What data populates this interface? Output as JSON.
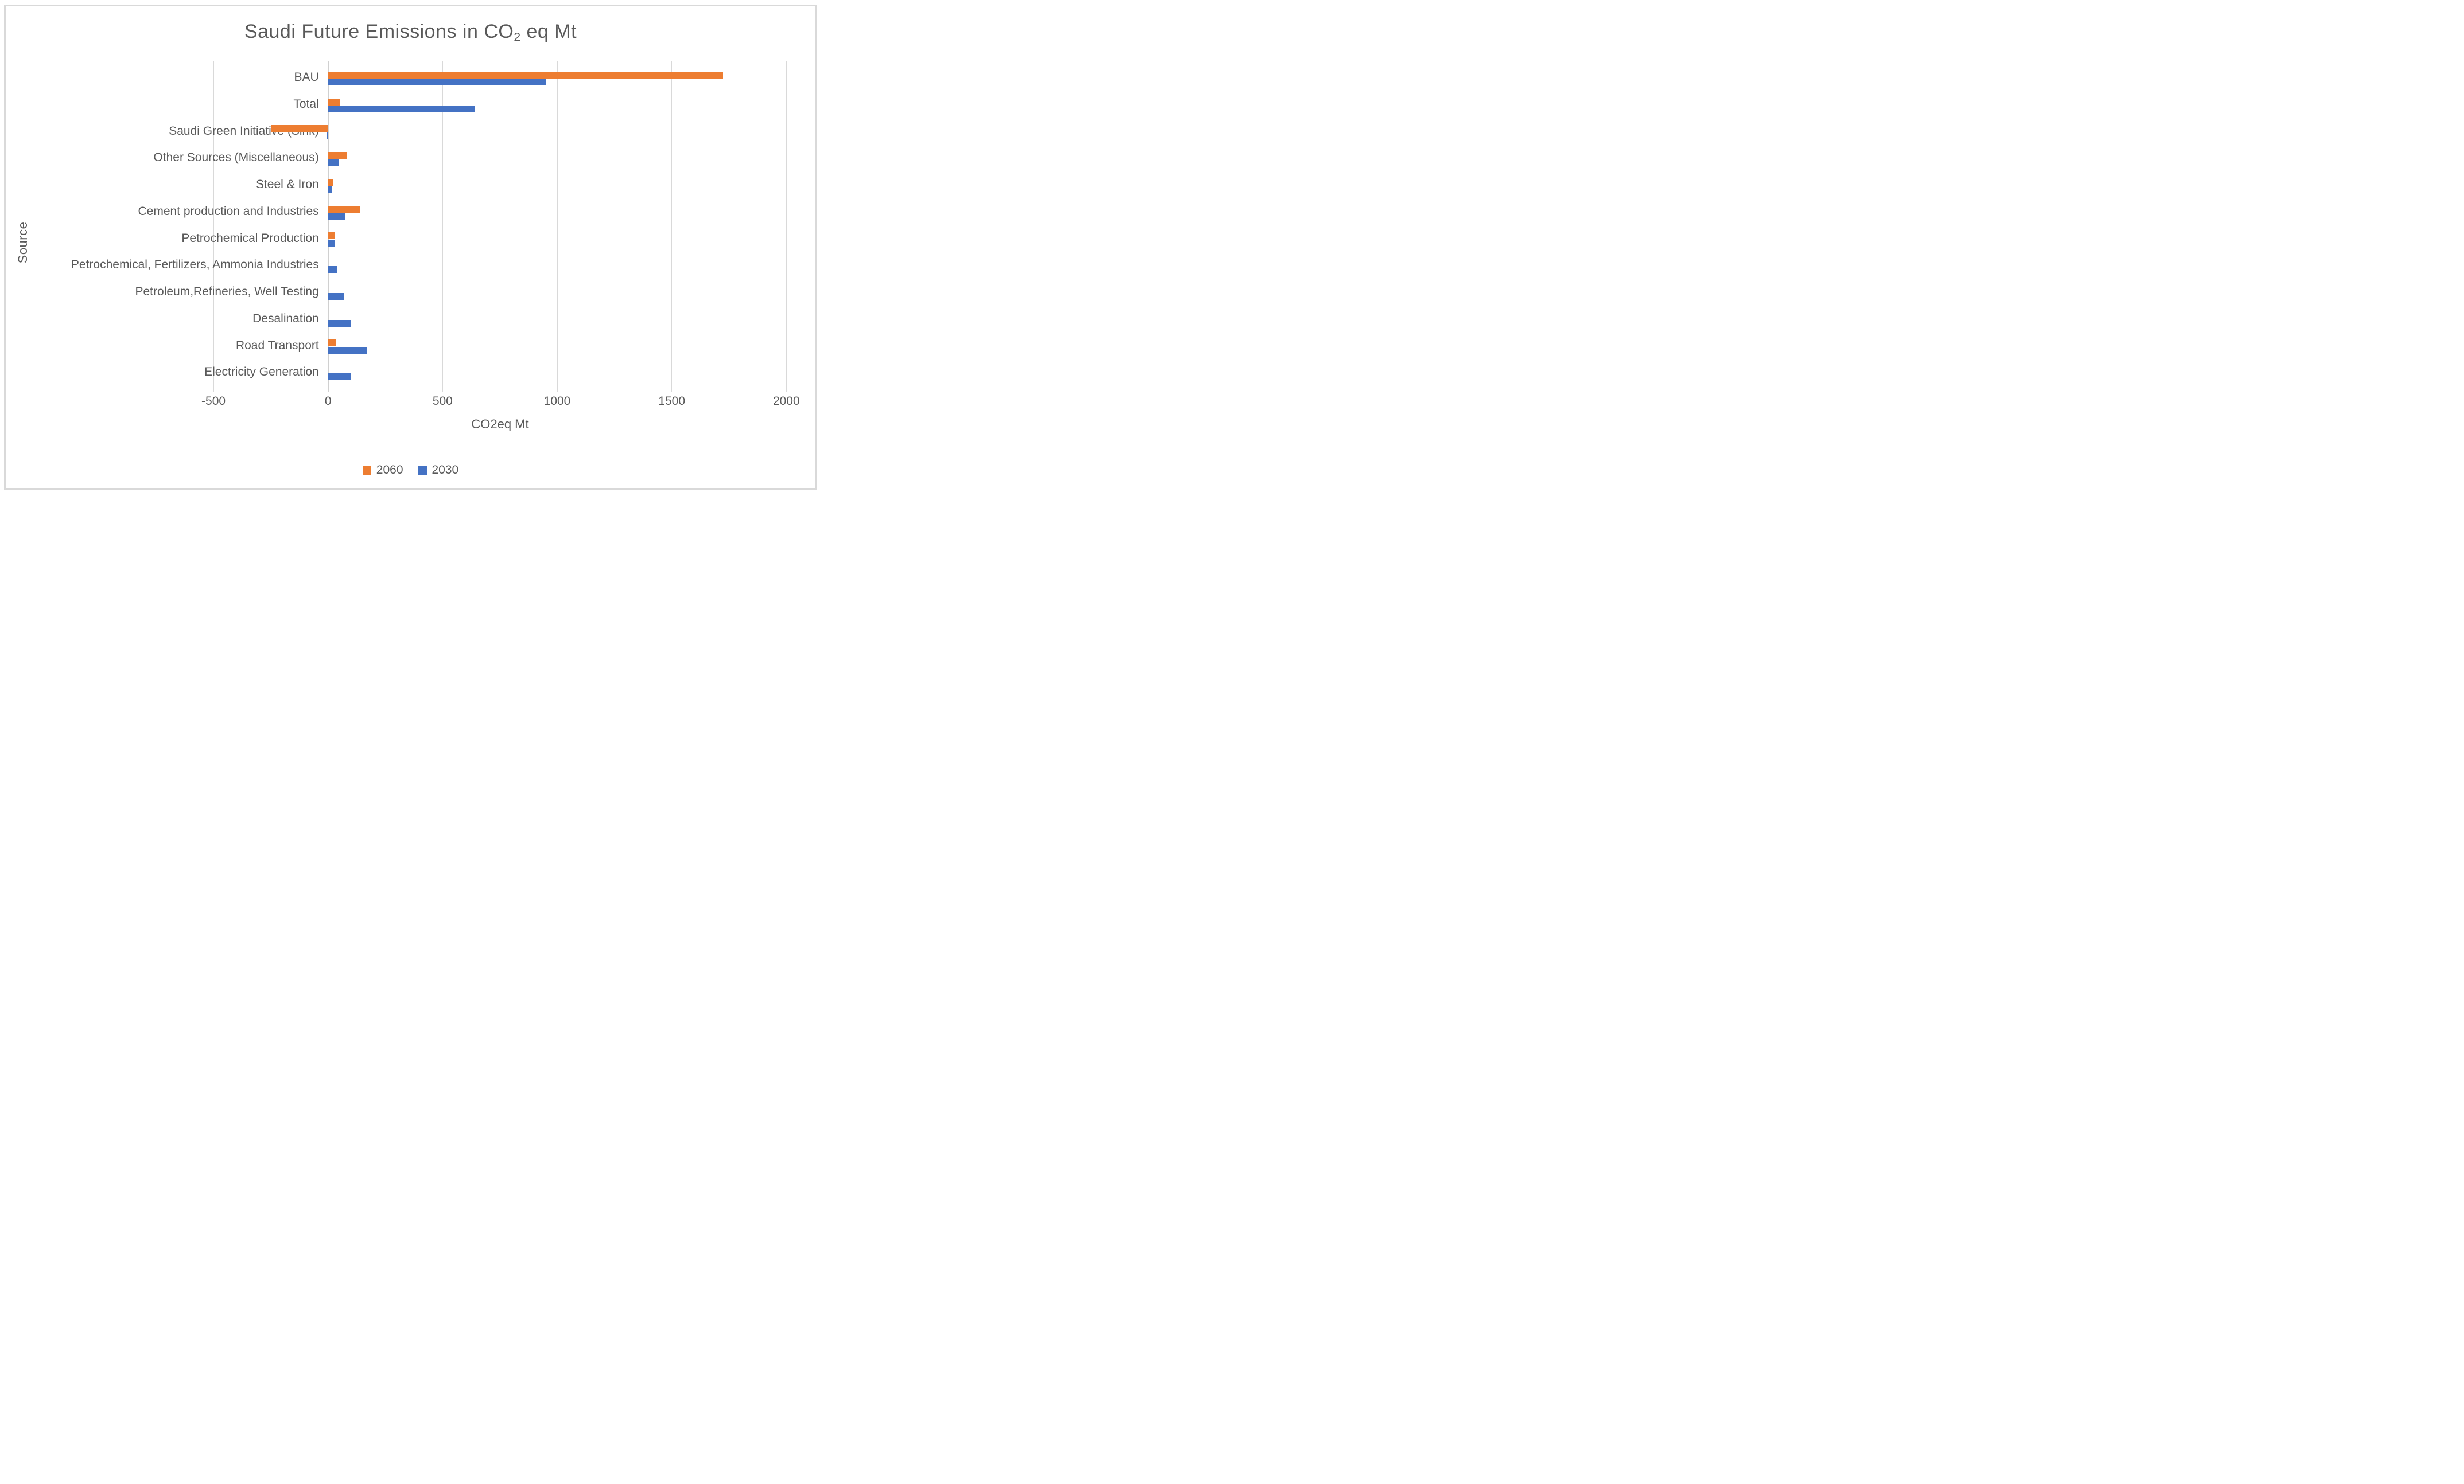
{
  "title": {
    "prefix": "Saudi Future Emissions in CO",
    "subscript": "2",
    "suffix": " eq Mt"
  },
  "chart_data": {
    "type": "bar",
    "orientation": "horizontal",
    "title": "Saudi Future Emissions in CO2 eq Mt",
    "xlabel": "CO2eq Mt",
    "ylabel": "Source",
    "xlim": [
      -500,
      2000
    ],
    "xticks": [
      "-500",
      "0",
      "500",
      "1000",
      "1500",
      "2000"
    ],
    "xtick_values": [
      -500,
      0,
      500,
      1000,
      1500,
      2000
    ],
    "grid": true,
    "legend_position": "bottom-center",
    "categories": [
      "BAU",
      "Total",
      "Saudi Green Initiative (Sink)",
      "Other Sources (Miscellaneous)",
      "Steel & Iron",
      "Cement production and Industries",
      "Petrochemical Production",
      "Petrochemical, Fertilizers, Ammonia Industries",
      "Petroleum,Refineries, Well Testing",
      "Desalination",
      "Road Transport",
      "Electricity Generation"
    ],
    "series": [
      {
        "name": "2060",
        "color": "#ED7D31",
        "values": [
          1725,
          50,
          -250,
          80,
          20,
          140,
          28,
          0,
          0,
          0,
          33,
          0
        ]
      },
      {
        "name": "2030",
        "color": "#4472C4",
        "values": [
          950,
          640,
          -8,
          45,
          15,
          75,
          30,
          38,
          68,
          100,
          170,
          100
        ]
      }
    ]
  },
  "colors": {
    "series_2060": "#ED7D31",
    "series_2030": "#4472C4",
    "gridline": "#D9D9D9",
    "border": "#D9D9D9",
    "text": "#595959",
    "background": "#FFFFFF"
  }
}
